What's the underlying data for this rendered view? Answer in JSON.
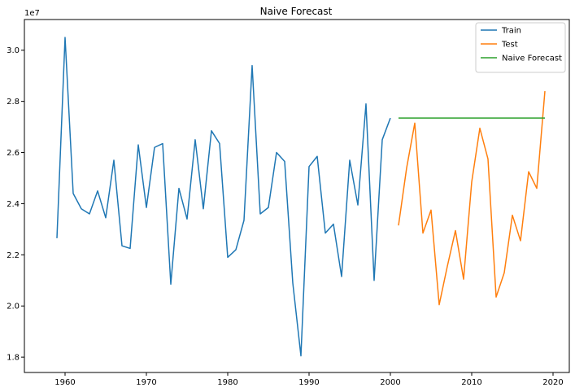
{
  "chart_data": {
    "type": "line",
    "title": "Naive Forecast",
    "xlabel": "",
    "ylabel": "",
    "y_offset_text": "1e7",
    "xlim": [
      1955,
      2022
    ],
    "ylim": [
      1.74,
      3.12
    ],
    "xticks": [
      1960,
      1970,
      1980,
      1990,
      2000,
      2010,
      2020
    ],
    "yticks": [
      1.8,
      2.0,
      2.2,
      2.4,
      2.6,
      2.8,
      3.0
    ],
    "legend_position": "top-right",
    "grid": false,
    "series": [
      {
        "name": "Train",
        "color": "#1f77b4",
        "x": [
          1959,
          1960,
          1961,
          1962,
          1963,
          1964,
          1965,
          1966,
          1967,
          1968,
          1969,
          1970,
          1971,
          1972,
          1973,
          1974,
          1975,
          1976,
          1977,
          1978,
          1979,
          1980,
          1981,
          1982,
          1983,
          1984,
          1985,
          1986,
          1987,
          1988,
          1989,
          1990,
          1991,
          1992,
          1993,
          1994,
          1995,
          1996,
          1997,
          1998,
          1999,
          2000
        ],
        "y": [
          2.265,
          3.05,
          2.44,
          2.38,
          2.36,
          2.45,
          2.345,
          2.57,
          2.235,
          2.225,
          2.63,
          2.385,
          2.62,
          2.635,
          2.085,
          2.46,
          2.34,
          2.65,
          2.38,
          2.685,
          2.635,
          2.19,
          2.22,
          2.335,
          2.94,
          2.36,
          2.385,
          2.6,
          2.565,
          2.09,
          1.805,
          2.545,
          2.585,
          2.285,
          2.32,
          2.115,
          2.57,
          2.395,
          2.79,
          2.1,
          2.65,
          2.735
        ]
      },
      {
        "name": "Test",
        "color": "#ff7f0e",
        "x": [
          2001,
          2002,
          2003,
          2004,
          2005,
          2006,
          2007,
          2008,
          2009,
          2010,
          2011,
          2012,
          2013,
          2014,
          2015,
          2016,
          2017,
          2018,
          2019
        ],
        "y": [
          2.315,
          2.54,
          2.715,
          2.285,
          2.375,
          2.005,
          2.155,
          2.295,
          2.105,
          2.485,
          2.695,
          2.575,
          2.035,
          2.13,
          2.355,
          2.255,
          2.525,
          2.46,
          2.84
        ]
      },
      {
        "name": "Naive Forecast",
        "color": "#2ca02c",
        "x": [
          2001,
          2019
        ],
        "y": [
          2.735,
          2.735
        ]
      }
    ]
  }
}
